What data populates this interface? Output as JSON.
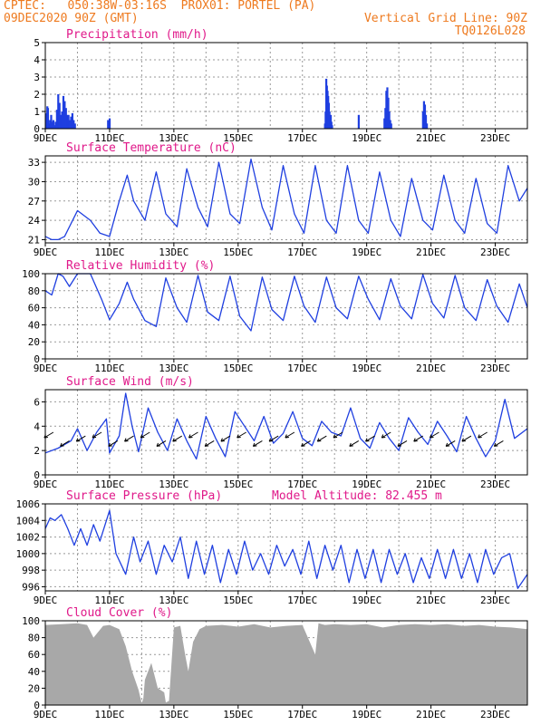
{
  "header": {
    "line1": "CPTEC:   050:38W-03:16S  PROX01: PORTEL (PA)",
    "line2": "09DEC2020 90Z (GMT)",
    "grid_note": "Vertical Grid Line: 90Z",
    "code": "TQ0126L028"
  },
  "colors": {
    "header": "#ee7a1f",
    "title": "#e0198a",
    "series": "#1f3fe0",
    "cloud": "#a8a8a8",
    "grid": "#999999"
  },
  "x_tick_labels": [
    "9DEC",
    "11DEC",
    "13DEC",
    "15DEC",
    "17DEC",
    "19DEC",
    "21DEC",
    "23DEC"
  ],
  "model_altitude": "Model Altitude: 82.455 m",
  "chart_data": [
    {
      "type": "bar",
      "title": "Precipitation (mm/h)",
      "ylim": [
        0,
        5
      ],
      "yticks": [
        "0",
        "1",
        "2",
        "3",
        "4",
        "5"
      ],
      "x_day": [
        0.02,
        0.04,
        0.06,
        0.08,
        0.1,
        0.12,
        0.14,
        0.16,
        0.18,
        0.2,
        0.22,
        0.25,
        0.28,
        0.32,
        0.36,
        0.4,
        0.44,
        0.48,
        0.52,
        0.56,
        0.6,
        0.64,
        0.68,
        0.72,
        0.76,
        0.8,
        0.84,
        0.88,
        0.92,
        1.95,
        2.0,
        8.7,
        8.72,
        8.74,
        8.76,
        8.78,
        8.8,
        8.82,
        8.84,
        8.86,
        8.88,
        8.9,
        8.92,
        9.75,
        10.55,
        10.58,
        10.61,
        10.64,
        10.67,
        10.7,
        10.73,
        10.76,
        11.75,
        11.78,
        11.81,
        11.84,
        11.87
      ],
      "values": [
        0.4,
        0.9,
        1.3,
        1.2,
        0.5,
        0.3,
        0.2,
        0.5,
        0.8,
        0.4,
        0.3,
        0.5,
        0.2,
        0.4,
        1.1,
        2.0,
        1.5,
        0.8,
        1.0,
        1.9,
        1.6,
        1.2,
        0.8,
        0.8,
        0.5,
        0.7,
        0.9,
        0.5,
        0.3,
        0.5,
        0.6,
        0.3,
        1.0,
        2.9,
        2.5,
        2.2,
        1.9,
        1.5,
        1.0,
        0.6,
        0.8,
        0.4,
        0.2,
        0.8,
        0.6,
        1.2,
        2.2,
        2.4,
        1.8,
        1.0,
        0.5,
        0.3,
        1.0,
        1.6,
        1.4,
        0.8,
        0.3
      ]
    },
    {
      "type": "line",
      "title": "Surface Temperature (nC)",
      "ylim": [
        20.5,
        34
      ],
      "yticks": [
        "21",
        "24",
        "27",
        "30",
        "33"
      ],
      "x_day": [
        0,
        0.2,
        0.4,
        0.6,
        1.0,
        1.4,
        1.7,
        2.0,
        2.3,
        2.55,
        2.75,
        3.1,
        3.45,
        3.75,
        4.1,
        4.4,
        4.75,
        5.05,
        5.4,
        5.75,
        6.05,
        6.4,
        6.75,
        7.05,
        7.4,
        7.75,
        8.05,
        8.4,
        8.75,
        9.05,
        9.4,
        9.75,
        10.05,
        10.4,
        10.75,
        11.05,
        11.4,
        11.75,
        12.05,
        12.4,
        12.75,
        13.05,
        13.4,
        13.75,
        14.05,
        14.4,
        14.75,
        15.0
      ],
      "values": [
        21.5,
        21,
        21,
        21.5,
        25.5,
        24,
        22,
        21.5,
        27,
        31,
        27,
        24,
        31.5,
        25,
        23,
        32,
        26,
        23,
        33,
        25,
        23.5,
        33.5,
        26,
        22.5,
        32.5,
        25,
        22,
        32.5,
        24,
        22,
        32.5,
        24,
        22,
        31.5,
        24,
        21.5,
        30.5,
        24,
        22.5,
        31,
        24,
        22,
        30.5,
        23.5,
        22,
        32.5,
        27,
        29
      ]
    },
    {
      "type": "line",
      "title": "Relative Humidity (%)",
      "ylim": [
        0,
        100
      ],
      "yticks": [
        "0",
        "20",
        "40",
        "60",
        "80",
        "100"
      ],
      "x_day": [
        0,
        0.2,
        0.4,
        0.55,
        0.75,
        1.0,
        1.4,
        1.75,
        2.0,
        2.3,
        2.55,
        2.75,
        3.1,
        3.45,
        3.75,
        4.1,
        4.4,
        4.75,
        5.05,
        5.4,
        5.75,
        6.05,
        6.4,
        6.75,
        7.05,
        7.4,
        7.75,
        8.05,
        8.4,
        8.75,
        9.05,
        9.4,
        9.75,
        10.05,
        10.4,
        10.75,
        11.05,
        11.4,
        11.75,
        12.05,
        12.4,
        12.75,
        13.05,
        13.4,
        13.75,
        14.05,
        14.4,
        14.75,
        15.0
      ],
      "values": [
        80,
        75,
        100,
        97,
        85,
        100,
        100,
        70,
        46,
        65,
        90,
        70,
        45,
        38,
        95,
        60,
        43,
        98,
        55,
        45,
        97,
        50,
        33,
        96,
        58,
        45,
        97,
        62,
        43,
        96,
        60,
        47,
        97,
        70,
        46,
        94,
        62,
        47,
        99,
        65,
        48,
        98,
        60,
        45,
        93,
        62,
        43,
        88,
        60
      ]
    },
    {
      "type": "line",
      "title": "Surface Wind (m/s)",
      "ylim": [
        0,
        7
      ],
      "yticks": [
        "0",
        "2",
        "4",
        "6"
      ],
      "x_day": [
        0,
        0.4,
        0.8,
        1.0,
        1.3,
        1.6,
        1.9,
        2.0,
        2.3,
        2.5,
        2.7,
        2.9,
        3.2,
        3.5,
        3.8,
        4.1,
        4.4,
        4.7,
        5.0,
        5.3,
        5.6,
        5.9,
        6.2,
        6.5,
        6.8,
        7.1,
        7.4,
        7.7,
        8.0,
        8.3,
        8.6,
        8.9,
        9.2,
        9.5,
        9.8,
        10.1,
        10.4,
        10.7,
        11.0,
        11.3,
        11.6,
        11.9,
        12.2,
        12.5,
        12.8,
        13.1,
        13.4,
        13.7,
        14.0,
        14.3,
        14.6,
        15.0
      ],
      "values": [
        1.8,
        2.2,
        2.8,
        3.8,
        2.0,
        3.5,
        4.6,
        1.8,
        3.2,
        6.7,
        4.0,
        1.9,
        5.5,
        3.5,
        2.0,
        4.6,
        2.8,
        1.3,
        4.8,
        3.0,
        1.5,
        5.2,
        4.0,
        2.8,
        4.8,
        2.6,
        3.4,
        5.2,
        3.0,
        2.4,
        4.4,
        3.5,
        3.2,
        5.5,
        3.0,
        2.2,
        4.3,
        3.0,
        2.0,
        4.7,
        3.5,
        2.5,
        4.4,
        3.2,
        1.9,
        4.8,
        3.0,
        1.5,
        2.8,
        6.2,
        3.0,
        3.8
      ]
    },
    {
      "type": "line",
      "title": "Surface Pressure (hPa)",
      "ylim": [
        995.5,
        1006
      ],
      "yticks": [
        "996",
        "998",
        "1000",
        "1002",
        "1004",
        "1006"
      ],
      "x_day": [
        0,
        0.15,
        0.3,
        0.5,
        0.7,
        0.9,
        1.1,
        1.3,
        1.5,
        1.7,
        2.0,
        2.2,
        2.5,
        2.75,
        2.95,
        3.2,
        3.45,
        3.7,
        3.95,
        4.2,
        4.45,
        4.7,
        4.95,
        5.2,
        5.45,
        5.7,
        5.95,
        6.2,
        6.45,
        6.7,
        6.95,
        7.2,
        7.45,
        7.7,
        7.95,
        8.2,
        8.45,
        8.7,
        8.95,
        9.2,
        9.45,
        9.7,
        9.95,
        10.2,
        10.45,
        10.7,
        10.95,
        11.2,
        11.45,
        11.7,
        11.95,
        12.2,
        12.45,
        12.7,
        12.95,
        13.2,
        13.45,
        13.7,
        13.95,
        14.2,
        14.45,
        14.7,
        15.0
      ],
      "values": [
        1003,
        1004.3,
        1004,
        1004.7,
        1003,
        1001,
        1003,
        1001,
        1003.5,
        1001.5,
        1005.2,
        1000,
        997.5,
        1002,
        999,
        1001.5,
        997.5,
        1001,
        999,
        1002,
        997,
        1001.5,
        997.5,
        1001,
        996.5,
        1000.5,
        997.5,
        1001.5,
        998,
        1000,
        997.5,
        1001,
        998.5,
        1000.5,
        997.5,
        1001.5,
        997,
        1001,
        998,
        1001,
        996.5,
        1000.5,
        997,
        1000.5,
        996.5,
        1000.5,
        997.5,
        1000,
        996.5,
        999.5,
        997,
        1000.5,
        997,
        1000.5,
        997,
        1000,
        996.5,
        1000.5,
        997.5,
        999.5,
        1000,
        995.8,
        997.5
      ]
    },
    {
      "type": "area",
      "title": "Cloud Cover (%)",
      "ylim": [
        0,
        100
      ],
      "yticks": [
        "0",
        "20",
        "40",
        "60",
        "80",
        "100"
      ],
      "x_day": [
        0,
        0.5,
        1.0,
        1.3,
        1.5,
        1.8,
        2.0,
        2.3,
        2.5,
        2.7,
        2.9,
        3.0,
        3.05,
        3.1,
        3.3,
        3.5,
        3.7,
        3.75,
        3.85,
        4.0,
        4.2,
        4.35,
        4.45,
        4.6,
        4.8,
        5.0,
        5.5,
        6.0,
        6.5,
        7.0,
        7.5,
        8.0,
        8.4,
        8.5,
        8.6,
        8.7,
        9.0,
        9.5,
        10.0,
        10.5,
        11.0,
        11.5,
        12.0,
        12.5,
        13.0,
        13.5,
        14.0,
        14.5,
        15.0
      ],
      "values": [
        95,
        96,
        97,
        95,
        80,
        94,
        95,
        90,
        70,
        40,
        18,
        2,
        8,
        30,
        50,
        20,
        15,
        3,
        5,
        92,
        94,
        60,
        40,
        75,
        90,
        94,
        95,
        93,
        96,
        92,
        94,
        95,
        60,
        97,
        96,
        95,
        96,
        95,
        96,
        92,
        95,
        96,
        95,
        96,
        94,
        95,
        93,
        92,
        90
      ]
    }
  ]
}
